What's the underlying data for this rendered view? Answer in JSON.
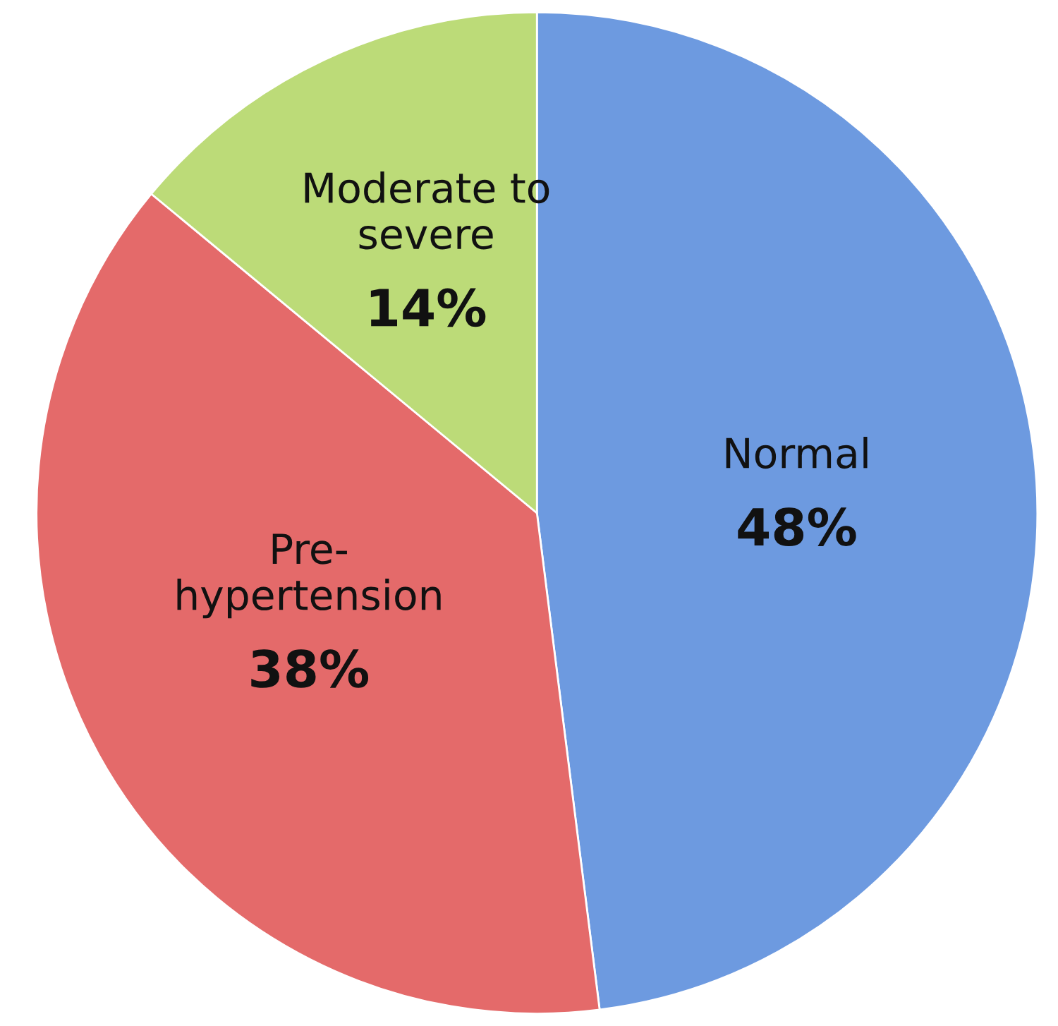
{
  "chart_data": {
    "type": "pie",
    "categories": [
      "Normal",
      "Pre-\nhypertension",
      "Moderate to\nsevere"
    ],
    "values": [
      48,
      38,
      14
    ],
    "colors": [
      "#6d9ae0",
      "#e46a6a",
      "#bcdb78"
    ],
    "value_labels": [
      "48%",
      "38%",
      "14%"
    ]
  }
}
